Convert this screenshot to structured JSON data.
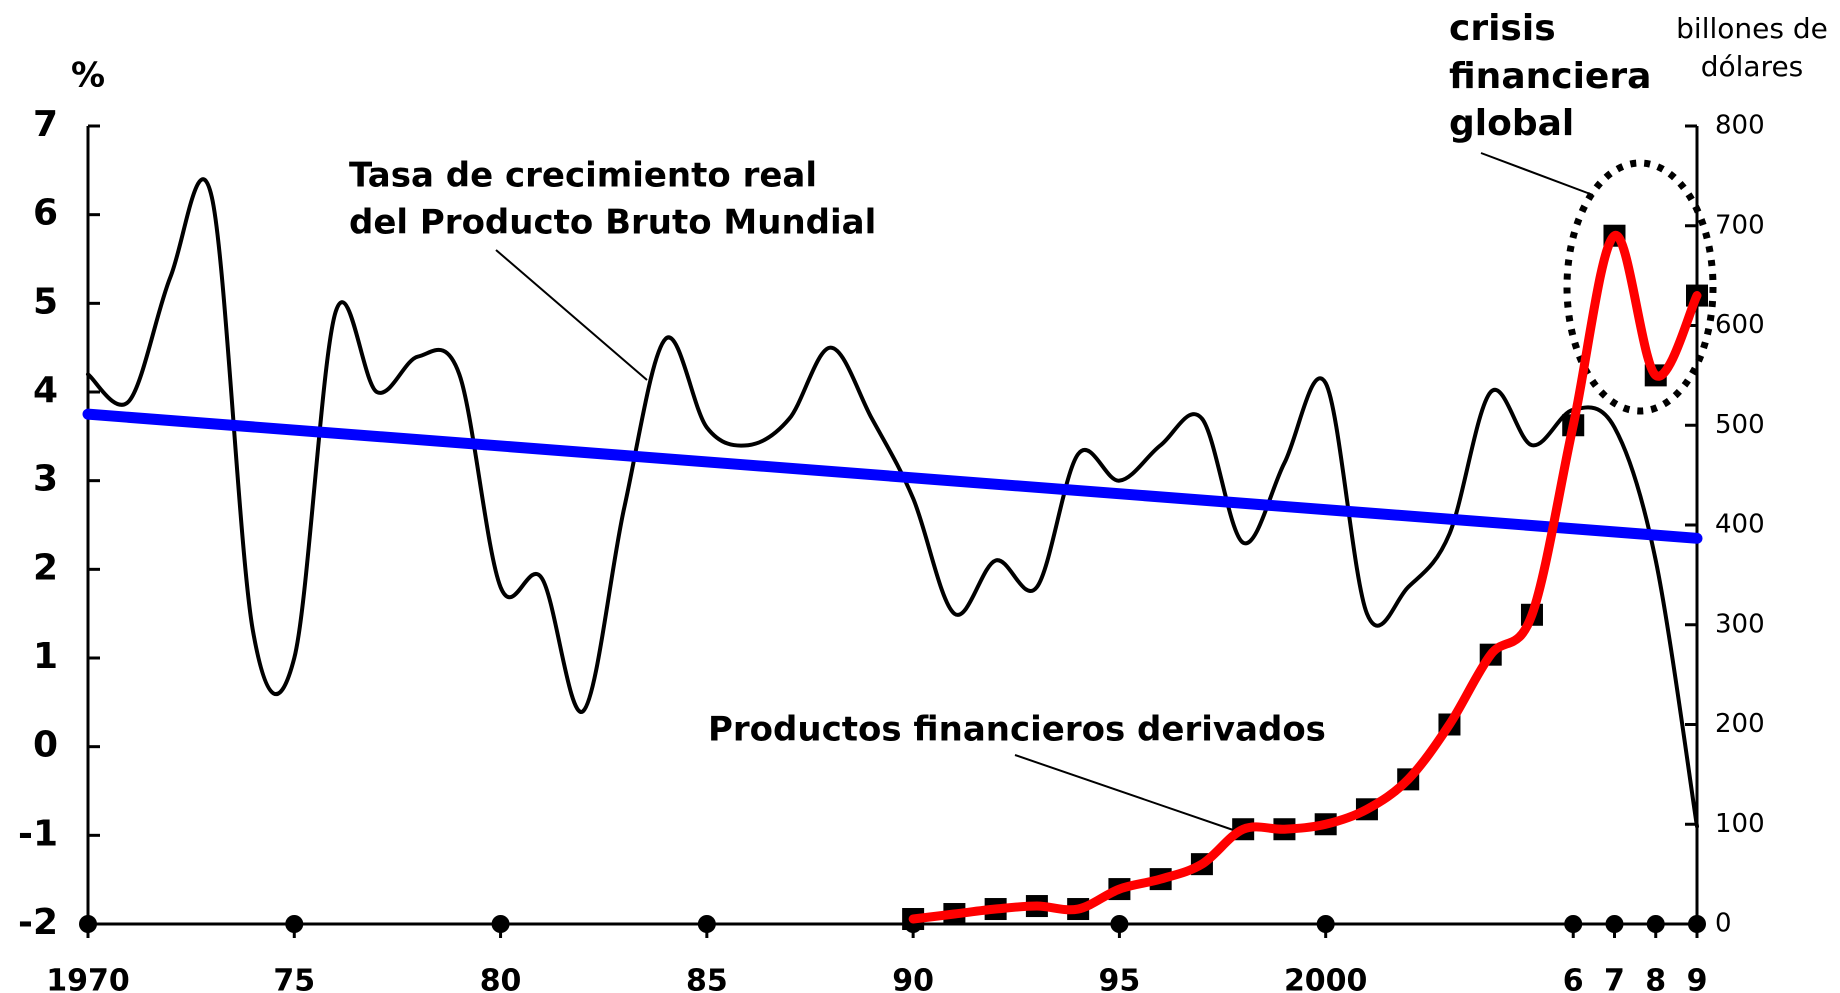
{
  "chart_data": {
    "type": "line",
    "ylabel": "%",
    "y2label": [
      "billones de",
      "dólares"
    ],
    "annotations": [
      "Tasa de crecimiento  real",
      "del Producto Bruto Mundial",
      "Productos financieros  derivados",
      "crisis",
      "financiera",
      "global"
    ],
    "x": [
      1970,
      1971,
      1972,
      1973,
      1974,
      1975,
      1976,
      1977,
      1978,
      1979,
      1980,
      1981,
      1982,
      1983,
      1984,
      1985,
      1986,
      1987,
      1988,
      1989,
      1990,
      1991,
      1992,
      1993,
      1994,
      1995,
      1996,
      1997,
      1998,
      1999,
      2000,
      2001,
      2002,
      2003,
      2004,
      2005,
      2006,
      2007,
      2008,
      2009
    ],
    "series": [
      {
        "color": "#000000",
        "values": [
          4.2,
          3.9,
          5.3,
          6.2,
          1.3,
          1.0,
          4.9,
          4.0,
          4.4,
          4.2,
          1.8,
          1.9,
          0.4,
          2.7,
          4.6,
          3.6,
          3.4,
          3.7,
          4.5,
          3.7,
          2.8,
          1.5,
          2.1,
          1.8,
          3.3,
          3.0,
          3.4,
          3.7,
          2.3,
          3.2,
          4.1,
          1.5,
          1.8,
          2.4,
          4.0,
          3.4,
          3.8,
          3.6,
          2.1,
          -0.9
        ]
      },
      {
        "color": "#0000ff",
        "x": [
          1970,
          2009
        ],
        "values": [
          3.75,
          2.35
        ]
      },
      {
        "color": "#ff0000",
        "marker_color": "#000000",
        "axis": "y2",
        "x": [
          1990,
          1991,
          1992,
          1993,
          1994,
          1995,
          1996,
          1997,
          1998,
          1999,
          2000,
          2001,
          2002,
          2003,
          2004,
          2005,
          2006,
          2007,
          2008,
          2009
        ],
        "values": [
          5,
          10,
          15,
          18,
          15,
          35,
          45,
          60,
          95,
          95,
          100,
          115,
          145,
          200,
          270,
          310,
          500,
          690,
          550,
          630
        ]
      }
    ],
    "xlim": [
      1970,
      2009
    ],
    "xticks": [
      1970,
      {
        "value": 1975,
        "label": "75"
      },
      {
        "value": 1980,
        "label": "80"
      },
      {
        "value": 1985,
        "label": "85"
      },
      {
        "value": 1990,
        "label": "90"
      },
      {
        "value": 1995,
        "label": "95"
      },
      2000,
      {
        "value": 2006,
        "label": "6"
      },
      {
        "value": 2007,
        "label": "7"
      },
      {
        "value": 2008,
        "label": "8"
      },
      {
        "value": 2009,
        "label": "9"
      }
    ],
    "ylim": [
      -2,
      7
    ],
    "yticks": [
      -2,
      -1,
      0,
      1,
      2,
      3,
      4,
      5,
      6,
      7
    ],
    "y2lim": [
      0,
      800
    ],
    "y2ticks": [
      0,
      100,
      200,
      300,
      400,
      500,
      600,
      700,
      800
    ]
  }
}
